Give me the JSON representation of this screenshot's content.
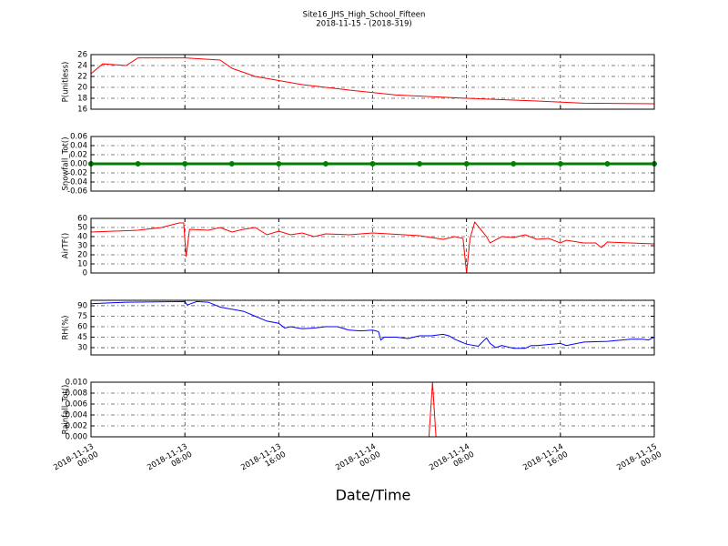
{
  "title": "Site16_JHS_High_School_Fifteen",
  "subtitle": "2018-11-15 - (2018-319)",
  "xlabel": "Date/Time",
  "chart_data": [
    {
      "type": "line",
      "ylabel": "P(unitless)",
      "color": "#ff0000",
      "grid": true,
      "x": [
        "2018-11-13 00:00",
        "2018-11-13 01:00",
        "2018-11-13 03:00",
        "2018-11-13 04:00",
        "2018-11-13 08:00",
        "2018-11-13 11:00",
        "2018-11-13 12:00",
        "2018-11-13 14:00",
        "2018-11-13 18:00",
        "2018-11-13 22:00",
        "2018-11-14 02:00",
        "2018-11-14 08:00",
        "2018-11-14 14:00",
        "2018-11-14 18:00",
        "2018-11-15 00:00"
      ],
      "values": [
        22.5,
        24.3,
        24,
        25.4,
        25.4,
        25,
        23.5,
        22,
        20.5,
        19.5,
        18.6,
        18,
        17.5,
        17.1,
        17
      ],
      "xlim": [
        "2018-11-13 00:00",
        "2018-11-15 00:00"
      ],
      "xticks": [
        "2018-11-13 00:00",
        "2018-11-13 08:00",
        "2018-11-13 16:00",
        "2018-11-14 00:00",
        "2018-11-14 08:00",
        "2018-11-14 16:00",
        "2018-11-15 00:00"
      ],
      "ylim": [
        16,
        26
      ],
      "yticks": [
        16,
        18,
        20,
        22,
        24,
        26
      ]
    },
    {
      "type": "line",
      "ylabel": "Snowfall_Tot()",
      "color": "#008000",
      "marker": "o",
      "grid": true,
      "x": [
        "2018-11-13 00:00",
        "2018-11-13 04:00",
        "2018-11-13 08:00",
        "2018-11-13 12:00",
        "2018-11-13 16:00",
        "2018-11-13 20:00",
        "2018-11-14 00:00",
        "2018-11-14 04:00",
        "2018-11-14 08:00",
        "2018-11-14 12:00",
        "2018-11-14 16:00",
        "2018-11-14 20:00",
        "2018-11-15 00:00"
      ],
      "values": [
        0,
        0,
        0,
        0,
        0,
        0,
        0,
        0,
        0,
        0,
        0,
        0,
        0
      ],
      "xlim": [
        "2018-11-13 00:00",
        "2018-11-15 00:00"
      ],
      "xticks": [
        "2018-11-13 00:00",
        "2018-11-13 08:00",
        "2018-11-13 16:00",
        "2018-11-14 00:00",
        "2018-11-14 08:00",
        "2018-11-14 16:00",
        "2018-11-15 00:00"
      ],
      "ylim": [
        -0.06,
        0.06
      ],
      "yticks": [
        -0.06,
        -0.04,
        -0.02,
        {
          "value": 0,
          "label": "0.00"
        },
        0.02,
        0.04,
        0.06
      ]
    },
    {
      "type": "line",
      "ylabel": "AirTF()",
      "color": "#ff0000",
      "grid": true,
      "x": [
        "2018-11-13 00:00",
        "2018-11-13 04:00",
        "2018-11-13 06:00",
        "2018-11-13 07:30",
        "2018-11-13 07:54",
        "2018-11-13 08:06",
        "2018-11-13 08:24",
        "2018-11-13 10:00",
        "2018-11-13 11:00",
        "2018-11-13 12:00",
        "2018-11-13 13:00",
        "2018-11-13 14:00",
        "2018-11-13 15:00",
        "2018-11-13 16:00",
        "2018-11-13 17:00",
        "2018-11-13 18:00",
        "2018-11-13 19:00",
        "2018-11-13 20:00",
        "2018-11-13 22:00",
        "2018-11-14 00:00",
        "2018-11-14 04:00",
        "2018-11-14 06:00",
        "2018-11-14 07:00",
        "2018-11-14 07:42",
        "2018-11-14 08:00",
        "2018-11-14 08:18",
        "2018-11-14 08:42",
        "2018-11-14 09:42",
        "2018-11-14 10:00",
        "2018-11-14 11:00",
        "2018-11-14 12:00",
        "2018-11-14 13:00",
        "2018-11-14 14:00",
        "2018-11-14 15:00",
        "2018-11-14 16:00",
        "2018-11-14 16:30",
        "2018-11-14 18:00",
        "2018-11-14 19:00",
        "2018-11-14 19:30",
        "2018-11-14 20:00",
        "2018-11-15 00:00"
      ],
      "values": [
        45,
        47,
        50,
        55,
        55,
        18,
        48,
        47,
        50,
        45,
        48,
        50,
        42,
        46,
        42,
        44,
        40,
        43,
        42,
        44,
        41,
        37,
        40,
        38,
        0,
        38,
        56,
        40,
        33,
        40,
        39,
        42,
        37,
        38,
        33,
        36,
        33,
        33,
        28,
        34,
        32
      ],
      "xlim": [
        "2018-11-13 00:00",
        "2018-11-15 00:00"
      ],
      "xticks": [
        "2018-11-13 00:00",
        "2018-11-13 08:00",
        "2018-11-13 16:00",
        "2018-11-14 00:00",
        "2018-11-14 08:00",
        "2018-11-14 16:00",
        "2018-11-15 00:00"
      ],
      "ylim": [
        0,
        60
      ],
      "yticks": [
        0,
        10,
        20,
        30,
        40,
        50,
        60
      ]
    },
    {
      "type": "line",
      "ylabel": "RH(%)",
      "color": "#0000ff",
      "grid": true,
      "x": [
        "2018-11-13 00:00",
        "2018-11-13 03:00",
        "2018-11-13 08:00",
        "2018-11-13 08:12",
        "2018-11-13 09:00",
        "2018-11-13 10:00",
        "2018-11-13 11:00",
        "2018-11-13 13:00",
        "2018-11-13 14:00",
        "2018-11-13 15:00",
        "2018-11-13 16:00",
        "2018-11-13 16:30",
        "2018-11-13 17:00",
        "2018-11-13 18:00",
        "2018-11-13 19:00",
        "2018-11-13 20:00",
        "2018-11-13 21:00",
        "2018-11-13 22:00",
        "2018-11-13 23:00",
        "2018-11-14 00:00",
        "2018-11-14 00:30",
        "2018-11-14 00:42",
        "2018-11-14 01:00",
        "2018-11-14 02:00",
        "2018-11-14 03:00",
        "2018-11-14 04:00",
        "2018-11-14 05:00",
        "2018-11-14 06:00",
        "2018-11-14 06:30",
        "2018-11-14 07:00",
        "2018-11-14 08:00",
        "2018-11-14 09:00",
        "2018-11-14 09:42",
        "2018-11-14 10:00",
        "2018-11-14 10:30",
        "2018-11-14 11:00",
        "2018-11-14 12:00",
        "2018-11-14 13:00",
        "2018-11-14 13:30",
        "2018-11-14 14:00",
        "2018-11-14 16:00",
        "2018-11-14 16:30",
        "2018-11-14 18:00",
        "2018-11-14 20:00",
        "2018-11-14 22:00",
        "2018-11-14 23:00",
        "2018-11-14 23:30",
        "2018-11-15 00:00"
      ],
      "values": [
        93,
        95,
        96,
        91,
        96,
        95,
        88,
        82,
        75,
        68,
        65,
        58,
        60,
        57,
        58,
        60,
        60,
        55,
        54,
        55,
        53,
        41,
        45,
        45,
        43,
        47,
        47,
        49,
        47,
        42,
        35,
        32,
        44,
        36,
        30,
        33,
        29,
        29,
        33,
        33,
        36,
        33,
        38,
        39,
        42,
        42,
        41,
        45
      ],
      "xlim": [
        "2018-11-13 00:00",
        "2018-11-15 00:00"
      ],
      "xticks": [
        "2018-11-13 00:00",
        "2018-11-13 08:00",
        "2018-11-13 16:00",
        "2018-11-14 00:00",
        "2018-11-14 08:00",
        "2018-11-14 16:00",
        "2018-11-15 00:00"
      ],
      "ylim": [
        19.6,
        97.8
      ],
      "yticks": [
        30,
        45,
        60,
        75,
        90
      ]
    },
    {
      "type": "line",
      "ylabel": "Rainfall_Tot()",
      "color": "#ff0000",
      "grid": true,
      "x": [
        "2018-11-13 00:00",
        "2018-11-14 04:48",
        "2018-11-14 05:06",
        "2018-11-14 05:24",
        "2018-11-15 00:00"
      ],
      "values": [
        0,
        0,
        0.01,
        0,
        0
      ],
      "xlim": [
        "2018-11-13 00:00",
        "2018-11-15 00:00"
      ],
      "xticks": [
        "2018-11-13 00:00",
        "2018-11-13 08:00",
        "2018-11-13 16:00",
        "2018-11-14 00:00",
        "2018-11-14 08:00",
        "2018-11-14 16:00",
        "2018-11-15 00:00"
      ],
      "ylim": [
        0,
        0.01
      ],
      "yticks": [
        {
          "value": 0,
          "label": "0.000"
        },
        {
          "value": 0.002,
          "label": "0.002"
        },
        {
          "value": 0.004,
          "label": "0.004"
        },
        {
          "value": 0.006,
          "label": "0.006"
        },
        {
          "value": 0.008,
          "label": "0.008"
        },
        {
          "value": 0.01,
          "label": "0.010"
        }
      ]
    }
  ]
}
